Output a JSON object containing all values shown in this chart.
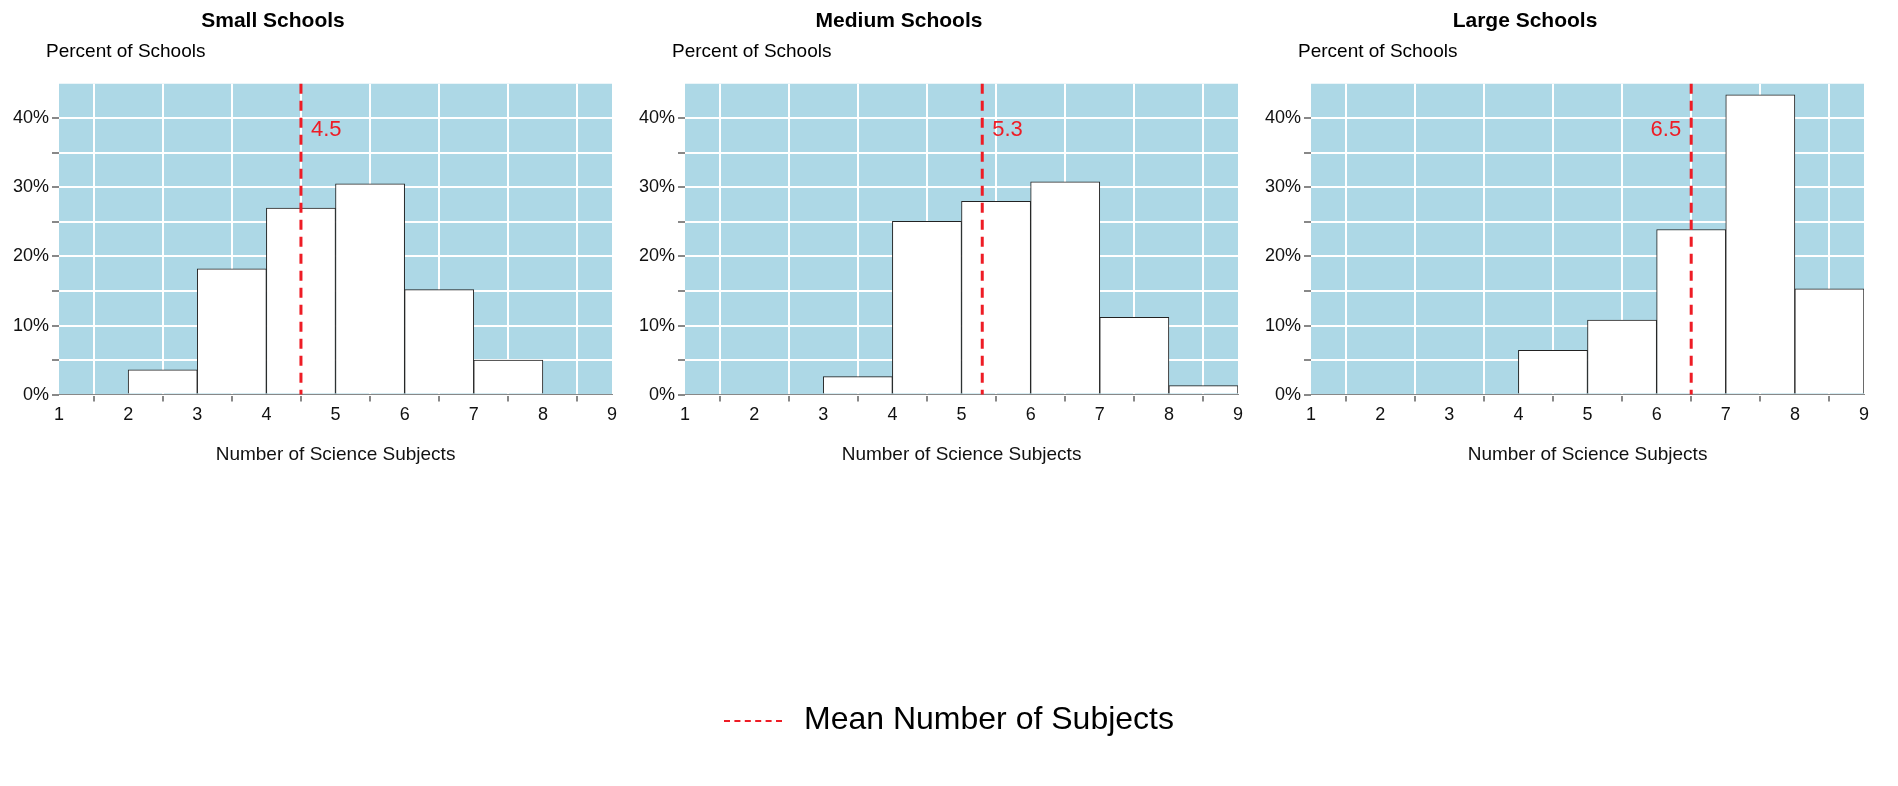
{
  "chart_data": [
    {
      "type": "histogram",
      "title": "Small Schools",
      "ylabel": "Percent of Schools",
      "xlabel": "Number of Science Subjects",
      "bins": [
        1,
        2,
        3,
        4,
        5,
        6,
        7,
        8
      ],
      "values": [
        0,
        3.6,
        18.2,
        27,
        30.5,
        15.2,
        5
      ],
      "color": "#ffffff",
      "xlim": [
        1,
        9
      ],
      "xticks": [
        1,
        2,
        3,
        4,
        5,
        6,
        7,
        8,
        9
      ],
      "ylim": [
        0,
        45
      ],
      "yticks": [
        {
          "value": 0,
          "label": "0%"
        },
        {
          "value": 5,
          "label": null
        },
        {
          "value": 10,
          "label": "10%"
        },
        {
          "value": 15,
          "label": null
        },
        {
          "value": 20,
          "label": "20%"
        },
        {
          "value": 25,
          "label": null
        },
        {
          "value": 30,
          "label": "30%"
        },
        {
          "value": 35,
          "label": null
        },
        {
          "value": 40,
          "label": "40%"
        }
      ],
      "grid": true,
      "ref_lines": [
        {
          "axis": "x",
          "value": 4.5,
          "label": "4.5",
          "color": "#ee1c25",
          "line_style": "dashed"
        }
      ],
      "annotations": [
        "Mean Number of Subjects"
      ]
    },
    {
      "type": "histogram",
      "title": "Medium Schools",
      "ylabel": "Percent of Schools",
      "xlabel": "Number of Science Subjects",
      "bins": [
        2,
        3,
        4,
        5,
        6,
        7,
        8,
        9
      ],
      "values": [
        0,
        2.6,
        25.1,
        28,
        30.8,
        11.2,
        1.3
      ],
      "color": "#ffffff",
      "xlim": [
        1,
        9
      ],
      "xticks": [
        1,
        2,
        3,
        4,
        5,
        6,
        7,
        8,
        9
      ],
      "ylim": [
        0,
        45
      ],
      "yticks": [
        {
          "value": 0,
          "label": "0%"
        },
        {
          "value": 5,
          "label": null
        },
        {
          "value": 10,
          "label": "10%"
        },
        {
          "value": 15,
          "label": null
        },
        {
          "value": 20,
          "label": "20%"
        },
        {
          "value": 25,
          "label": null
        },
        {
          "value": 30,
          "label": "30%"
        },
        {
          "value": 35,
          "label": null
        },
        {
          "value": 40,
          "label": "40%"
        }
      ],
      "grid": true,
      "ref_lines": [
        {
          "axis": "x",
          "value": 5.3,
          "label": "5.3",
          "color": "#ee1c25",
          "line_style": "dashed"
        }
      ]
    },
    {
      "type": "histogram",
      "title": "Large Schools",
      "ylabel": "Percent of Schools",
      "xlabel": "Number of Science Subjects",
      "bins": [
        3,
        4,
        5,
        6,
        7,
        8,
        9
      ],
      "values": [
        0,
        6.4,
        10.8,
        23.9,
        43.4,
        15.3
      ],
      "color": "#ffffff",
      "xlim": [
        1,
        9
      ],
      "xticks": [
        1,
        2,
        3,
        4,
        5,
        6,
        7,
        8,
        9
      ],
      "ylim": [
        0,
        45
      ],
      "yticks": [
        {
          "value": 0,
          "label": "0%"
        },
        {
          "value": 5,
          "label": null
        },
        {
          "value": 10,
          "label": "10%"
        },
        {
          "value": 15,
          "label": null
        },
        {
          "value": 20,
          "label": "20%"
        },
        {
          "value": 25,
          "label": null
        },
        {
          "value": 30,
          "label": "30%"
        },
        {
          "value": 35,
          "label": null
        },
        {
          "value": 40,
          "label": "40%"
        }
      ],
      "grid": true,
      "ref_lines": [
        {
          "axis": "x",
          "value": 6.5,
          "label": "6.5",
          "color": "#ee1c25",
          "line_style": "dashed"
        }
      ]
    }
  ]
}
